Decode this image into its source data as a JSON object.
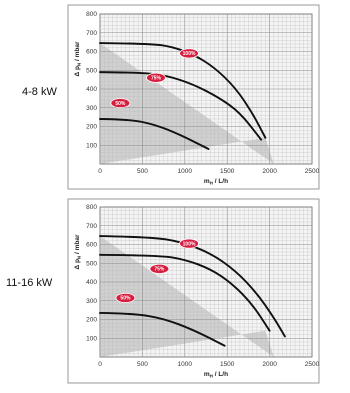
{
  "chart_data": [
    {
      "type": "line",
      "title": "",
      "panel_label": "4-8 kW",
      "xlabel": "m",
      "xlabel_sub": "H",
      "xlabel_unit": " / L/h",
      "ylabel": "Δ p",
      "ylabel_sub": "N",
      "ylabel_unit": " / mbar",
      "xlim": [
        0,
        2500
      ],
      "ylim": [
        0,
        800
      ],
      "xticks": [
        "0",
        "500",
        "1000",
        "1500",
        "2000",
        "2500"
      ],
      "yticks": [
        "100",
        "200",
        "300",
        "400",
        "500",
        "600",
        "700",
        "800"
      ],
      "grid": true,
      "series": [
        {
          "name": "100%",
          "x": [
            0,
            600,
            850,
            1100,
            1350,
            1600,
            1800,
            1950
          ],
          "y": [
            645,
            642,
            625,
            585,
            515,
            405,
            270,
            140
          ]
        },
        {
          "name": "75%",
          "x": [
            0,
            500,
            800,
            1100,
            1400,
            1650,
            1900
          ],
          "y": [
            490,
            488,
            470,
            425,
            355,
            275,
            130
          ]
        },
        {
          "name": "50%",
          "x": [
            0,
            350,
            650,
            950,
            1280
          ],
          "y": [
            240,
            238,
            210,
            155,
            80
          ]
        }
      ],
      "shaded_region": {
        "x": [
          0,
          2050,
          1950,
          0
        ],
        "y": [
          645,
          0,
          140,
          0
        ]
      }
    },
    {
      "type": "line",
      "title": "",
      "panel_label": "11-16 kW",
      "xlabel": "m",
      "xlabel_sub": "H",
      "xlabel_unit": " / L/h",
      "ylabel": "Δ p",
      "ylabel_sub": "N",
      "ylabel_unit": " / mbar",
      "xlim": [
        0,
        2500
      ],
      "ylim": [
        0,
        800
      ],
      "xticks": [
        "0",
        "500",
        "1000",
        "1500",
        "2000",
        "2500"
      ],
      "yticks": [
        "100",
        "200",
        "300",
        "400",
        "500",
        "600",
        "700",
        "800"
      ],
      "grid": true,
      "series": [
        {
          "name": "100%",
          "x": [
            0,
            600,
            950,
            1300,
            1600,
            1850,
            2050,
            2180
          ],
          "y": [
            645,
            640,
            615,
            555,
            460,
            340,
            210,
            110
          ]
        },
        {
          "name": "75%",
          "x": [
            0,
            700,
            1000,
            1300,
            1550,
            1800,
            2000
          ],
          "y": [
            545,
            542,
            520,
            470,
            395,
            280,
            140
          ]
        },
        {
          "name": "50%",
          "x": [
            0,
            400,
            750,
            1100,
            1470
          ],
          "y": [
            235,
            232,
            205,
            145,
            60
          ]
        }
      ],
      "shaded_region": {
        "x": [
          0,
          2050,
          1950,
          0
        ],
        "y": [
          645,
          0,
          140,
          0
        ]
      }
    }
  ]
}
